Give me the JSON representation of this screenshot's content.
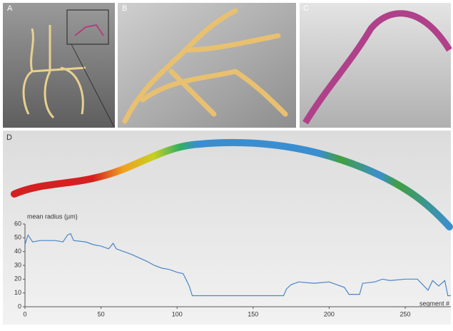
{
  "panels": {
    "a": "A",
    "b": "B",
    "c": "C",
    "d": "D"
  },
  "chart_data": {
    "type": "line",
    "y_label": "mean radius (µm)",
    "x_label": "segment #",
    "color": "#4a86c8",
    "x": [
      0,
      2,
      5,
      10,
      20,
      25,
      28,
      30,
      32,
      40,
      45,
      50,
      55,
      58,
      60,
      70,
      80,
      85,
      90,
      95,
      100,
      104,
      108,
      110,
      115,
      130,
      155,
      170,
      172,
      175,
      180,
      190,
      200,
      205,
      210,
      213,
      220,
      222,
      230,
      235,
      240,
      250,
      258,
      265,
      268,
      272,
      276,
      278,
      280
    ],
    "values": [
      45,
      52,
      47,
      48,
      48,
      47,
      52,
      53,
      48,
      47,
      45,
      44,
      42,
      46,
      42,
      38,
      33,
      30,
      28,
      27,
      25,
      24,
      15,
      8,
      8,
      8,
      8,
      8,
      13,
      16,
      18,
      17,
      18,
      16,
      14,
      9,
      9,
      17,
      18,
      20,
      19,
      20,
      20,
      12,
      19,
      15,
      19,
      8,
      8
    ],
    "xlim": [
      0,
      280
    ],
    "ylim": [
      0,
      60
    ],
    "xticks": [
      0,
      50,
      100,
      150,
      200,
      250
    ],
    "yticks": [
      0,
      10,
      20,
      30,
      40,
      50,
      60
    ]
  }
}
